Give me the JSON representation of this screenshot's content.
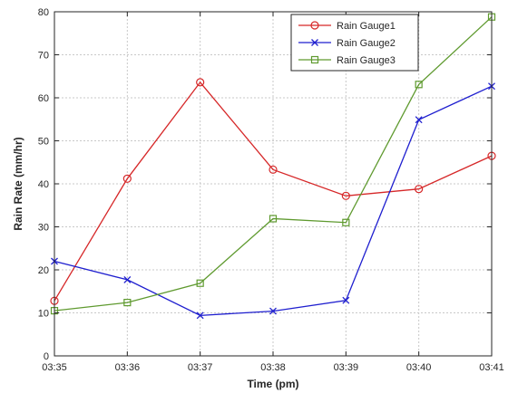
{
  "chart_data": {
    "type": "line",
    "xlabel": "Time (pm)",
    "ylabel": "Rain Rate (mm/hr)",
    "categories": [
      "03:35",
      "03:36",
      "03:37",
      "03:38",
      "03:39",
      "03:40",
      "03:41"
    ],
    "ylim": [
      0,
      80
    ],
    "yticks": [
      0,
      10,
      20,
      30,
      40,
      50,
      60,
      70,
      80
    ],
    "grid": true,
    "legend_position": "top-right",
    "series": [
      {
        "name": "Rain Gauge1",
        "color": "#d62728",
        "marker": "circle",
        "values": [
          12.8,
          41.2,
          63.6,
          43.3,
          37.2,
          38.8,
          46.5
        ]
      },
      {
        "name": "Rain Gauge2",
        "color": "#1f1fcf",
        "marker": "x",
        "values": [
          22.0,
          17.7,
          9.4,
          10.4,
          12.9,
          54.9,
          62.7
        ]
      },
      {
        "name": "Rain Gauge3",
        "color": "#5f9a2f",
        "marker": "square",
        "values": [
          10.5,
          12.4,
          16.9,
          31.9,
          31.0,
          63.1,
          78.8
        ]
      }
    ]
  }
}
